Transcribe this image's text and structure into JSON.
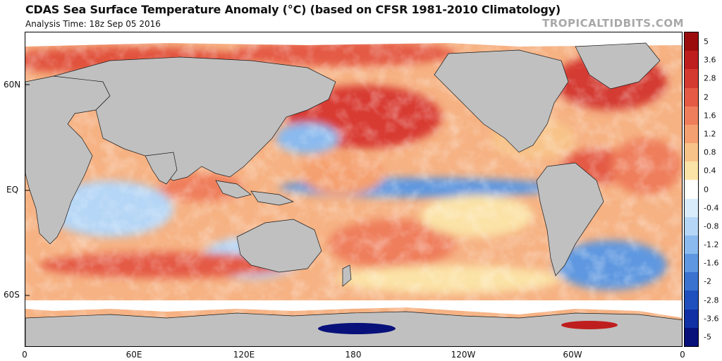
{
  "header": {
    "title": "CDAS Sea Surface Temperature Anomaly (°C) (based on CFSR 1981-2010 Climatology)",
    "subtitle": "Analysis Time: 18z Sep 05 2016",
    "brand": "TROPICALTIDBITS.COM"
  },
  "map": {
    "lat_labels": [
      "60N",
      "EQ",
      "60S"
    ],
    "lon_labels": [
      "0",
      "60E",
      "120E",
      "180",
      "120W",
      "60W",
      "0"
    ],
    "land_color": "#c0c0c0",
    "ice_color": "#ffffff"
  },
  "colorbar": {
    "labels": [
      "5",
      "3.6",
      "2.8",
      "2",
      "1.6",
      "1.2",
      "0.8",
      "0.4",
      "0",
      "-0.4",
      "-0.8",
      "-1.2",
      "-1.6",
      "-2",
      "-2.8",
      "-3.6",
      "-5"
    ],
    "colors": [
      "#9b0d0d",
      "#bf1e1e",
      "#d43a30",
      "#e45a45",
      "#ef7e5c",
      "#f5a070",
      "#f8c389",
      "#fbe2a6",
      "#ffffff",
      "#d9ecfb",
      "#b5d6f6",
      "#8bbaee",
      "#5f98e0",
      "#3b72cf",
      "#2050bd",
      "#1130a5",
      "#08107a"
    ]
  }
}
